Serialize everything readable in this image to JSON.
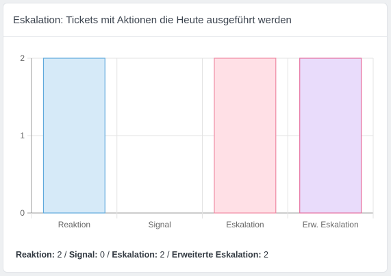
{
  "card": {
    "title": "Eskalation: Tickets mit Aktionen die Heute ausgeführt werden"
  },
  "chart_data": {
    "type": "bar",
    "categories": [
      "Reaktion",
      "Signal",
      "Eskalation",
      "Erw. Eskalation"
    ],
    "values": [
      2,
      0,
      2,
      2
    ],
    "ylim": [
      0,
      2
    ],
    "yticks": [
      "0",
      "1",
      "2"
    ],
    "grid": true,
    "legend": "none",
    "colors": [
      {
        "fill": "#d6eaf8",
        "stroke": "#5fa9dc"
      },
      {
        "fill": "#ffe3e6",
        "stroke": "#e05a6f"
      },
      {
        "fill": "#ffe0e6",
        "stroke": "#ef8aa4"
      },
      {
        "fill": "#e9dcfb",
        "stroke": "#e56fa0"
      }
    ]
  },
  "summary": [
    {
      "label": "Reaktion:",
      "value": "2"
    },
    {
      "label": "Signal:",
      "value": "0"
    },
    {
      "label": "Eskalation:",
      "value": "2"
    },
    {
      "label": "Erweiterte Eskalation:",
      "value": "2"
    }
  ],
  "summary_separator": " / "
}
